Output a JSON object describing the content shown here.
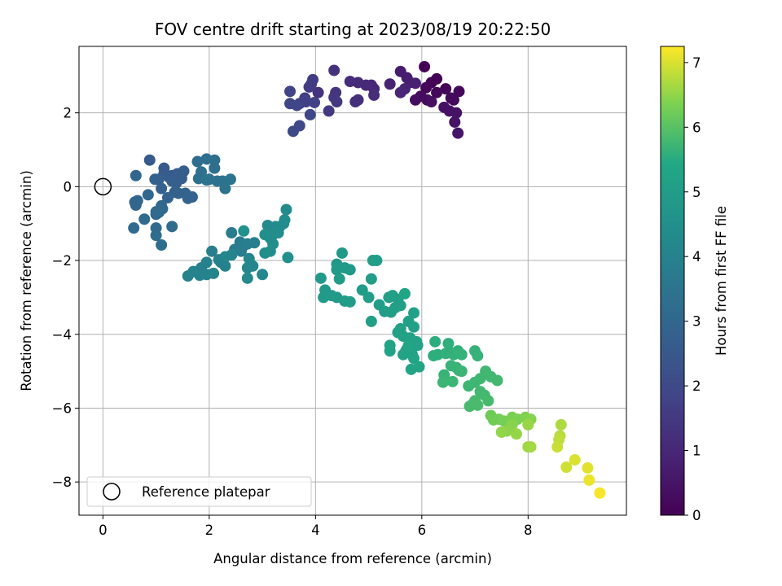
{
  "chart_data": {
    "type": "scatter",
    "title": "FOV centre drift starting at 2023/08/19 20:22:50",
    "xlabel": "Angular distance from reference (arcmin)",
    "ylabel": "Rotation from reference (arcmin)",
    "xlim": [
      -0.45,
      9.85
    ],
    "ylim": [
      -8.9,
      3.8
    ],
    "x_ticks": [
      0,
      2,
      4,
      6,
      8
    ],
    "y_ticks": [
      -8,
      -6,
      -4,
      -2,
      0,
      2
    ],
    "grid": true,
    "colormap": "viridis",
    "colorbar": {
      "label": "Hours from first FF file",
      "range": [
        0,
        7.25
      ],
      "ticks": [
        0,
        1,
        2,
        3,
        4,
        5,
        6,
        7
      ]
    },
    "legend": {
      "position": "lower-left",
      "entries": [
        "Reference platepar"
      ]
    },
    "reference_point": {
      "x": 0,
      "y": 0,
      "label": "Reference platepar"
    },
    "series": [
      {
        "points": [
          [
            6.05,
            3.25
          ],
          [
            6.28,
            2.92
          ],
          [
            6.18,
            2.82
          ],
          [
            6.45,
            2.65
          ],
          [
            6.08,
            2.68
          ],
          [
            6.28,
            2.55
          ],
          [
            6.7,
            2.58
          ],
          [
            6.55,
            2.4
          ],
          [
            6.6,
            2.35
          ],
          [
            5.98,
            2.45
          ],
          [
            5.88,
            2.35
          ],
          [
            6.1,
            2.35
          ],
          [
            6.18,
            2.3
          ],
          [
            6.42,
            2.15
          ],
          [
            6.52,
            2.05
          ],
          [
            6.65,
            2.0
          ],
          [
            6.62,
            1.75
          ],
          [
            6.68,
            1.45
          ],
          [
            5.6,
            3.12
          ],
          [
            5.72,
            2.95
          ],
          [
            5.78,
            2.82
          ],
          [
            5.88,
            2.8
          ],
          [
            5.4,
            2.78
          ],
          [
            5.68,
            2.65
          ],
          [
            5.6,
            2.55
          ],
          [
            5.05,
            2.75
          ],
          [
            5.1,
            2.65
          ],
          [
            4.95,
            2.75
          ],
          [
            4.8,
            2.82
          ],
          [
            4.65,
            2.85
          ],
          [
            5.1,
            2.48
          ],
          [
            4.75,
            2.3
          ],
          [
            4.8,
            2.35
          ],
          [
            4.35,
            3.15
          ],
          [
            4.05,
            2.55
          ],
          [
            4.38,
            2.55
          ],
          [
            4.35,
            2.42
          ],
          [
            4.4,
            2.3
          ],
          [
            4.25,
            2.05
          ],
          [
            3.92,
            2.78
          ],
          [
            3.88,
            2.7
          ],
          [
            3.95,
            2.9
          ],
          [
            3.8,
            2.4
          ],
          [
            3.7,
            2.25
          ],
          [
            3.82,
            2.3
          ],
          [
            3.98,
            2.28
          ],
          [
            3.52,
            2.58
          ],
          [
            3.52,
            2.25
          ],
          [
            3.65,
            2.2
          ],
          [
            3.9,
            1.95
          ],
          [
            3.7,
            1.65
          ],
          [
            3.58,
            1.5
          ],
          [
            0.88,
            0.72
          ],
          [
            1.15,
            0.5
          ],
          [
            1.15,
            0.35
          ],
          [
            1.25,
            0.25
          ],
          [
            1.3,
            0.3
          ],
          [
            1.4,
            0.35
          ],
          [
            1.52,
            0.42
          ],
          [
            1.48,
            0.22
          ],
          [
            1.3,
            0.15
          ],
          [
            1.38,
            0.1
          ],
          [
            1.05,
            0.2
          ],
          [
            0.98,
            0.2
          ],
          [
            1.1,
            -0.05
          ],
          [
            1.35,
            -0.15
          ],
          [
            1.42,
            -0.18
          ],
          [
            1.55,
            -0.18
          ],
          [
            1.22,
            -0.3
          ],
          [
            1.6,
            -0.32
          ],
          [
            1.68,
            -0.28
          ],
          [
            0.62,
            0.3
          ],
          [
            0.6,
            -0.42
          ],
          [
            0.65,
            -0.38
          ],
          [
            0.62,
            -0.5
          ],
          [
            0.85,
            -0.22
          ],
          [
            1.1,
            -0.52
          ],
          [
            1.05,
            -0.7
          ],
          [
            1.12,
            -0.6
          ],
          [
            1.0,
            -0.75
          ],
          [
            0.78,
            -0.88
          ],
          [
            1.0,
            -0.68
          ],
          [
            0.58,
            -1.12
          ],
          [
            1.0,
            -1.12
          ],
          [
            1.3,
            -1.08
          ],
          [
            1.0,
            -1.32
          ],
          [
            1.1,
            -1.58
          ],
          [
            1.78,
            0.68
          ],
          [
            1.95,
            0.75
          ],
          [
            2.1,
            0.72
          ],
          [
            2.1,
            0.5
          ],
          [
            1.85,
            0.4
          ],
          [
            1.8,
            0.22
          ],
          [
            2.0,
            0.2
          ],
          [
            2.15,
            0.15
          ],
          [
            2.25,
            0.15
          ],
          [
            2.4,
            0.2
          ],
          [
            1.95,
            0.18
          ],
          [
            2.3,
            -0.05
          ],
          [
            2.42,
            -1.25
          ],
          [
            2.58,
            -1.5
          ],
          [
            2.65,
            -1.6
          ],
          [
            2.48,
            -1.7
          ],
          [
            2.6,
            -1.75
          ],
          [
            2.72,
            -1.55
          ],
          [
            2.85,
            -1.52
          ],
          [
            2.05,
            -1.75
          ],
          [
            2.18,
            -1.98
          ],
          [
            2.22,
            -2.05
          ],
          [
            2.3,
            -2.15
          ],
          [
            1.95,
            -2.05
          ],
          [
            1.85,
            -2.2
          ],
          [
            1.7,
            -2.3
          ],
          [
            1.6,
            -2.42
          ],
          [
            1.82,
            -2.4
          ],
          [
            1.95,
            -2.38
          ],
          [
            2.08,
            -2.35
          ],
          [
            2.3,
            -1.9
          ],
          [
            2.42,
            -1.85
          ],
          [
            2.75,
            -1.95
          ],
          [
            2.82,
            -2.15
          ],
          [
            2.72,
            -2.2
          ],
          [
            3.0,
            -2.38
          ],
          [
            2.72,
            -2.48
          ],
          [
            3.1,
            -1.05
          ],
          [
            3.18,
            -1.15
          ],
          [
            3.25,
            -1.08
          ],
          [
            3.32,
            -1.1
          ],
          [
            3.4,
            -1.0
          ],
          [
            3.45,
            -0.62
          ],
          [
            3.42,
            -0.9
          ],
          [
            3.3,
            -1.25
          ],
          [
            3.2,
            -1.3
          ],
          [
            3.15,
            -1.4
          ],
          [
            3.2,
            -1.55
          ],
          [
            3.05,
            -1.8
          ],
          [
            3.15,
            -1.75
          ],
          [
            3.48,
            -1.92
          ],
          [
            3.05,
            -1.3
          ],
          [
            2.65,
            -1.2
          ],
          [
            4.5,
            -1.8
          ],
          [
            4.4,
            -2.1
          ],
          [
            4.4,
            -2.25
          ],
          [
            4.55,
            -2.2
          ],
          [
            4.65,
            -2.25
          ],
          [
            4.1,
            -2.48
          ],
          [
            4.18,
            -2.8
          ],
          [
            4.15,
            -3.0
          ],
          [
            4.3,
            -2.95
          ],
          [
            4.4,
            -3.0
          ],
          [
            4.55,
            -3.1
          ],
          [
            4.65,
            -3.12
          ],
          [
            4.45,
            -2.5
          ],
          [
            4.88,
            -2.8
          ],
          [
            5.05,
            -2.5
          ],
          [
            5.08,
            -2.0
          ],
          [
            5.15,
            -2.0
          ],
          [
            5.0,
            -3.0
          ],
          [
            5.2,
            -3.2
          ],
          [
            5.3,
            -3.38
          ],
          [
            5.42,
            -3.4
          ],
          [
            5.5,
            -3.28
          ],
          [
            5.6,
            -3.22
          ],
          [
            5.38,
            -3.0
          ],
          [
            5.45,
            -2.95
          ],
          [
            5.55,
            -3.05
          ],
          [
            5.05,
            -3.65
          ],
          [
            5.85,
            -3.42
          ],
          [
            5.75,
            -3.65
          ],
          [
            5.85,
            -3.8
          ],
          [
            5.6,
            -3.85
          ],
          [
            5.55,
            -3.95
          ],
          [
            5.65,
            -4.05
          ],
          [
            5.78,
            -4.1
          ],
          [
            5.9,
            -4.2
          ],
          [
            5.92,
            -4.3
          ],
          [
            5.72,
            -4.4
          ],
          [
            5.7,
            -4.45
          ],
          [
            5.82,
            -4.55
          ],
          [
            5.4,
            -4.3
          ],
          [
            5.4,
            -4.45
          ],
          [
            5.65,
            -4.55
          ],
          [
            5.95,
            -4.88
          ],
          [
            5.8,
            -4.95
          ],
          [
            5.85,
            -4.65
          ],
          [
            5.75,
            -4.3
          ],
          [
            5.68,
            -2.9
          ]
        ],
        "hours": [
          0.0,
          0.03,
          0.06,
          0.09,
          0.12,
          0.15,
          0.18,
          0.21,
          0.24,
          0.27,
          0.3,
          0.33,
          0.36,
          0.39,
          0.42,
          0.45,
          0.48,
          0.51,
          0.7,
          0.74,
          0.78,
          0.82,
          0.86,
          0.9,
          0.94,
          0.98,
          1.02,
          1.06,
          1.1,
          1.14,
          1.18,
          1.22,
          1.26,
          1.3,
          1.34,
          1.38,
          1.42,
          1.46,
          1.5,
          1.54,
          1.58,
          1.62,
          1.66,
          1.7,
          1.74,
          1.78,
          1.82,
          1.86,
          1.9,
          1.94,
          1.98,
          2.02,
          2.55,
          2.57,
          2.59,
          2.61,
          2.63,
          2.65,
          2.67,
          2.69,
          2.71,
          2.73,
          2.75,
          2.77,
          2.79,
          2.81,
          2.83,
          2.85,
          2.87,
          2.89,
          2.91,
          2.93,
          2.95,
          2.97,
          2.99,
          3.01,
          3.03,
          3.05,
          3.07,
          3.09,
          3.11,
          3.13,
          3.15,
          3.17,
          3.19,
          3.21,
          3.23,
          3.25,
          3.27,
          3.29,
          3.31,
          3.33,
          3.35,
          3.37,
          3.39,
          3.41,
          3.43,
          3.45,
          3.47,
          3.72,
          3.74,
          3.76,
          3.78,
          3.8,
          3.82,
          3.84,
          3.86,
          3.88,
          3.9,
          3.92,
          3.94,
          3.96,
          3.98,
          4.0,
          4.02,
          4.04,
          4.06,
          4.08,
          4.1,
          4.12,
          4.14,
          4.16,
          4.18,
          4.2,
          4.22,
          4.24,
          4.26,
          4.28,
          4.3,
          4.32,
          4.34,
          4.36,
          4.38,
          4.4,
          4.42,
          4.44,
          4.46,
          4.48,
          4.5,
          4.52,
          4.85,
          4.86,
          4.87,
          4.88,
          4.89,
          4.9,
          4.91,
          4.92,
          4.93,
          4.94,
          4.95,
          4.96,
          4.97,
          4.98,
          4.99,
          5.0,
          5.01,
          5.02,
          5.03,
          5.04,
          5.05,
          5.06,
          5.07,
          5.08,
          5.09,
          5.1,
          5.11,
          5.12,
          5.13,
          5.14,
          5.15,
          5.16,
          5.17,
          5.18,
          5.19,
          5.2,
          5.21,
          5.22,
          5.23,
          5.24,
          5.25,
          5.26,
          5.27,
          5.28,
          5.29,
          5.3,
          5.31
        ]
      },
      {
        "points": [
          [
            6.25,
            -4.2
          ],
          [
            6.3,
            -4.55
          ],
          [
            6.22,
            -4.58
          ],
          [
            6.5,
            -4.25
          ],
          [
            6.55,
            -4.5
          ],
          [
            6.45,
            -4.52
          ],
          [
            6.6,
            -4.55
          ],
          [
            6.68,
            -4.45
          ],
          [
            6.75,
            -4.55
          ],
          [
            7.0,
            -4.45
          ],
          [
            7.05,
            -4.58
          ],
          [
            6.42,
            -5.1
          ],
          [
            6.55,
            -4.85
          ],
          [
            6.65,
            -4.9
          ],
          [
            6.7,
            -4.98
          ],
          [
            6.75,
            -5.0
          ],
          [
            6.4,
            -5.3
          ],
          [
            6.58,
            -5.28
          ],
          [
            6.88,
            -5.4
          ],
          [
            7.0,
            -5.3
          ],
          [
            7.1,
            -5.2
          ],
          [
            7.2,
            -5.0
          ],
          [
            7.3,
            -5.15
          ],
          [
            7.42,
            -5.25
          ],
          [
            7.1,
            -5.55
          ],
          [
            7.18,
            -5.65
          ],
          [
            7.25,
            -5.8
          ],
          [
            7.0,
            -5.8
          ],
          [
            6.95,
            -5.9
          ],
          [
            6.9,
            -5.95
          ],
          [
            7.05,
            -5.92
          ]
        ],
        "hours": [
          5.55,
          5.56,
          5.57,
          5.58,
          5.59,
          5.6,
          5.61,
          5.62,
          5.63,
          5.64,
          5.65,
          5.66,
          5.67,
          5.68,
          5.69,
          5.7,
          5.71,
          5.72,
          5.73,
          5.74,
          5.75,
          5.76,
          5.77,
          5.78,
          5.79,
          5.8,
          5.81,
          5.82,
          5.83,
          5.84,
          5.85
        ]
      },
      {
        "points": [
          [
            7.3,
            -6.2
          ],
          [
            7.35,
            -6.32
          ],
          [
            7.45,
            -6.3
          ],
          [
            7.55,
            -6.35
          ],
          [
            7.7,
            -6.25
          ],
          [
            7.8,
            -6.3
          ],
          [
            7.95,
            -6.25
          ],
          [
            8.05,
            -6.3
          ],
          [
            7.7,
            -6.45
          ],
          [
            7.6,
            -6.62
          ],
          [
            7.5,
            -6.65
          ],
          [
            7.78,
            -6.7
          ],
          [
            8.0,
            -6.45
          ],
          [
            8.0,
            -7.05
          ],
          [
            8.05,
            -7.05
          ],
          [
            8.62,
            -6.45
          ],
          [
            8.6,
            -6.75
          ],
          [
            8.58,
            -6.85
          ],
          [
            8.55,
            -7.05
          ],
          [
            8.72,
            -7.6
          ],
          [
            8.88,
            -7.4
          ],
          [
            9.12,
            -7.62
          ],
          [
            9.15,
            -7.95
          ],
          [
            9.35,
            -8.3
          ]
        ],
        "hours": [
          6.2,
          6.23,
          6.26,
          6.29,
          6.32,
          6.35,
          6.38,
          6.41,
          6.44,
          6.47,
          6.5,
          6.53,
          6.56,
          6.59,
          6.62,
          6.7,
          6.76,
          6.82,
          6.88,
          6.94,
          7.0,
          7.06,
          7.12,
          7.2
        ]
      }
    ]
  }
}
